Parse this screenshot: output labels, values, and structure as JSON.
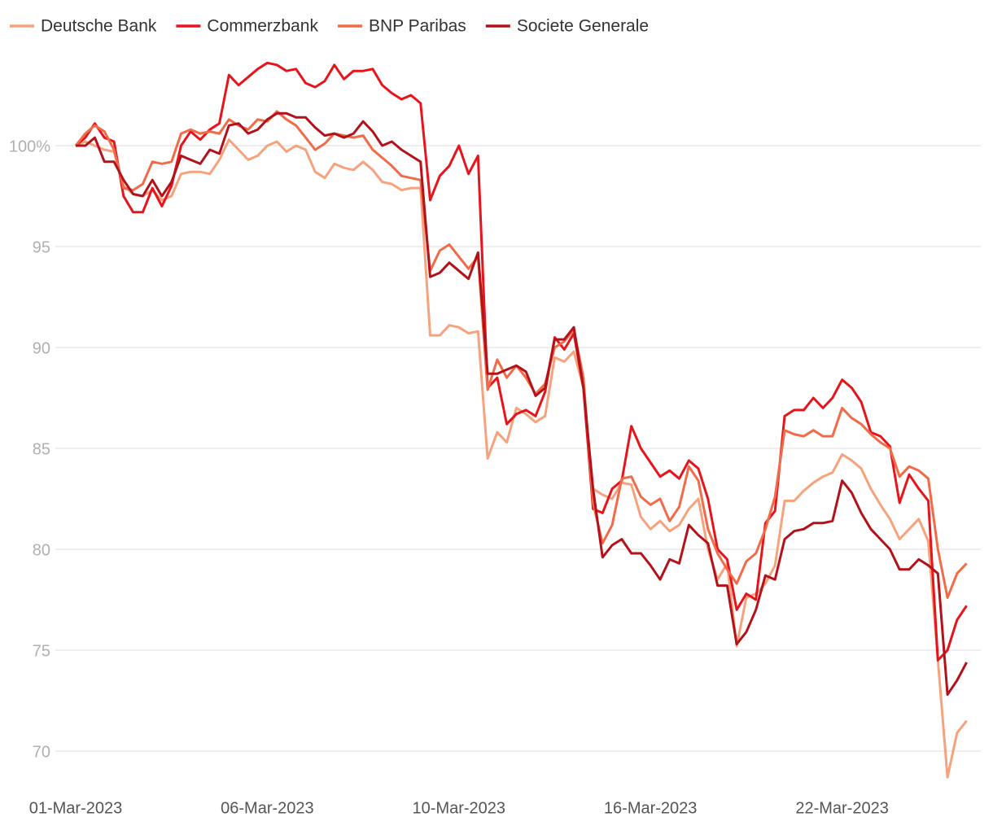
{
  "chart_data": {
    "type": "line",
    "categories": [
      "01-Mar-2023",
      null,
      null,
      null,
      null,
      null,
      null,
      null,
      null,
      null,
      null,
      null,
      null,
      null,
      null,
      null,
      null,
      null,
      null,
      null,
      "06-Mar-2023",
      null,
      null,
      null,
      null,
      null,
      null,
      null,
      null,
      null,
      null,
      null,
      null,
      null,
      null,
      null,
      null,
      null,
      null,
      null,
      "10-Mar-2023",
      null,
      null,
      null,
      null,
      null,
      null,
      null,
      null,
      null,
      null,
      null,
      null,
      null,
      null,
      null,
      null,
      null,
      null,
      null,
      "16-Mar-2023",
      null,
      null,
      null,
      null,
      null,
      null,
      null,
      null,
      null,
      null,
      null,
      null,
      null,
      null,
      null,
      null,
      null,
      null,
      null,
      "22-Mar-2023",
      null,
      null,
      null,
      null,
      null,
      null,
      null,
      null,
      null,
      null,
      null,
      null,
      null
    ],
    "series": [
      {
        "name": "Deutsche Bank",
        "color": "#f6a27d",
        "values": [
          100.0,
          100.2,
          100.0,
          99.8,
          99.7,
          98.0,
          97.6,
          97.5,
          97.8,
          97.3,
          97.5,
          98.6,
          98.7,
          98.7,
          98.6,
          99.3,
          100.3,
          99.8,
          99.3,
          99.5,
          100.0,
          100.2,
          99.7,
          100.0,
          99.8,
          98.7,
          98.4,
          99.1,
          98.9,
          98.8,
          99.2,
          98.8,
          98.2,
          98.1,
          97.8,
          97.9,
          97.9,
          90.6,
          90.6,
          91.1,
          91.0,
          90.7,
          90.8,
          84.5,
          85.8,
          85.3,
          87.0,
          86.7,
          86.3,
          86.6,
          89.5,
          89.3,
          89.8,
          88.0,
          83.0,
          82.7,
          82.5,
          83.3,
          83.2,
          81.6,
          81.0,
          81.4,
          80.9,
          81.2,
          82.0,
          82.5,
          80.0,
          78.5,
          79.3,
          75.2,
          77.6,
          77.8,
          78.3,
          79.2,
          82.4,
          82.4,
          82.9,
          83.3,
          83.6,
          83.8,
          84.7,
          84.4,
          84.0,
          83.0,
          82.2,
          81.5,
          80.5,
          81.0,
          81.5,
          80.4,
          74.5,
          68.7,
          70.9,
          71.5
        ]
      },
      {
        "name": "Commerzbank",
        "color": "#e8141c",
        "values": [
          100.0,
          100.4,
          101.1,
          100.4,
          100.2,
          97.5,
          96.7,
          96.7,
          97.9,
          97.0,
          98.0,
          100.0,
          100.7,
          100.3,
          100.8,
          101.1,
          103.5,
          103.0,
          103.4,
          103.8,
          104.1,
          104.0,
          103.7,
          103.8,
          103.1,
          102.9,
          103.2,
          104.0,
          103.3,
          103.7,
          103.7,
          103.8,
          103.0,
          102.6,
          102.3,
          102.5,
          102.1,
          97.3,
          98.5,
          99.0,
          100.0,
          98.6,
          99.5,
          88.0,
          88.5,
          86.2,
          86.7,
          86.9,
          86.6,
          87.8,
          90.5,
          89.9,
          90.7,
          88.0,
          82.0,
          81.8,
          83.0,
          83.4,
          86.1,
          85.0,
          84.3,
          83.6,
          83.9,
          83.5,
          84.4,
          84.0,
          82.5,
          80.0,
          79.5,
          77.0,
          77.8,
          77.5,
          81.3,
          81.9,
          86.6,
          86.9,
          86.9,
          87.5,
          87.0,
          87.5,
          88.4,
          88.0,
          87.3,
          85.8,
          85.6,
          85.1,
          82.3,
          83.7,
          83.0,
          82.4,
          74.5,
          75.0,
          76.5,
          77.2
        ]
      },
      {
        "name": "BNP Paribas",
        "color": "#f26a47",
        "values": [
          100.0,
          100.6,
          101.0,
          100.7,
          99.8,
          97.9,
          97.8,
          98.1,
          99.2,
          99.1,
          99.2,
          100.6,
          100.8,
          100.6,
          100.7,
          100.6,
          101.3,
          101.0,
          100.8,
          101.3,
          101.2,
          101.7,
          101.3,
          101.0,
          100.4,
          99.8,
          100.1,
          100.6,
          100.5,
          100.4,
          100.5,
          99.8,
          99.4,
          99.0,
          98.5,
          98.4,
          98.3,
          93.8,
          94.8,
          95.1,
          94.5,
          93.9,
          94.5,
          87.9,
          89.4,
          88.5,
          89.1,
          88.5,
          87.7,
          88.2,
          90.0,
          90.3,
          90.9,
          88.5,
          82.3,
          80.3,
          81.2,
          83.5,
          83.6,
          82.6,
          82.2,
          82.5,
          81.4,
          82.1,
          84.1,
          83.4,
          81.0,
          79.8,
          79.0,
          78.3,
          79.4,
          79.8,
          81.0,
          82.6,
          85.9,
          85.7,
          85.6,
          85.9,
          85.6,
          85.6,
          87.0,
          86.5,
          86.2,
          85.7,
          85.3,
          85.0,
          83.6,
          84.1,
          83.9,
          83.5,
          80.0,
          77.6,
          78.8,
          79.3
        ]
      },
      {
        "name": "Societe Generale",
        "color": "#b3121a",
        "values": [
          100.0,
          100.0,
          100.4,
          99.2,
          99.2,
          98.3,
          97.6,
          97.5,
          98.3,
          97.5,
          98.2,
          99.5,
          99.3,
          99.1,
          99.8,
          99.6,
          101.0,
          101.1,
          100.6,
          100.8,
          101.3,
          101.6,
          101.6,
          101.4,
          101.4,
          100.9,
          100.5,
          100.6,
          100.4,
          100.6,
          101.2,
          100.7,
          100.0,
          100.2,
          99.8,
          99.5,
          99.2,
          93.5,
          93.7,
          94.2,
          93.8,
          93.4,
          94.7,
          88.7,
          88.7,
          88.9,
          89.1,
          88.8,
          87.6,
          88.0,
          90.4,
          90.4,
          91.0,
          88.0,
          83.0,
          79.6,
          80.2,
          80.5,
          79.8,
          79.8,
          79.2,
          78.5,
          79.5,
          79.3,
          81.2,
          80.7,
          80.3,
          78.2,
          78.2,
          75.3,
          75.9,
          77.0,
          78.7,
          78.5,
          80.5,
          80.9,
          81.0,
          81.3,
          81.3,
          81.4,
          83.4,
          82.8,
          81.8,
          81.0,
          80.5,
          80.0,
          79.0,
          79.0,
          79.5,
          79.2,
          78.8,
          72.8,
          73.5,
          74.4
        ]
      }
    ],
    "ylim": [
      68,
      105
    ],
    "yticks": [
      70,
      75,
      80,
      85,
      90,
      95,
      {
        "value": 100,
        "label": "100%"
      }
    ],
    "grid": true,
    "legend": "top-left"
  }
}
